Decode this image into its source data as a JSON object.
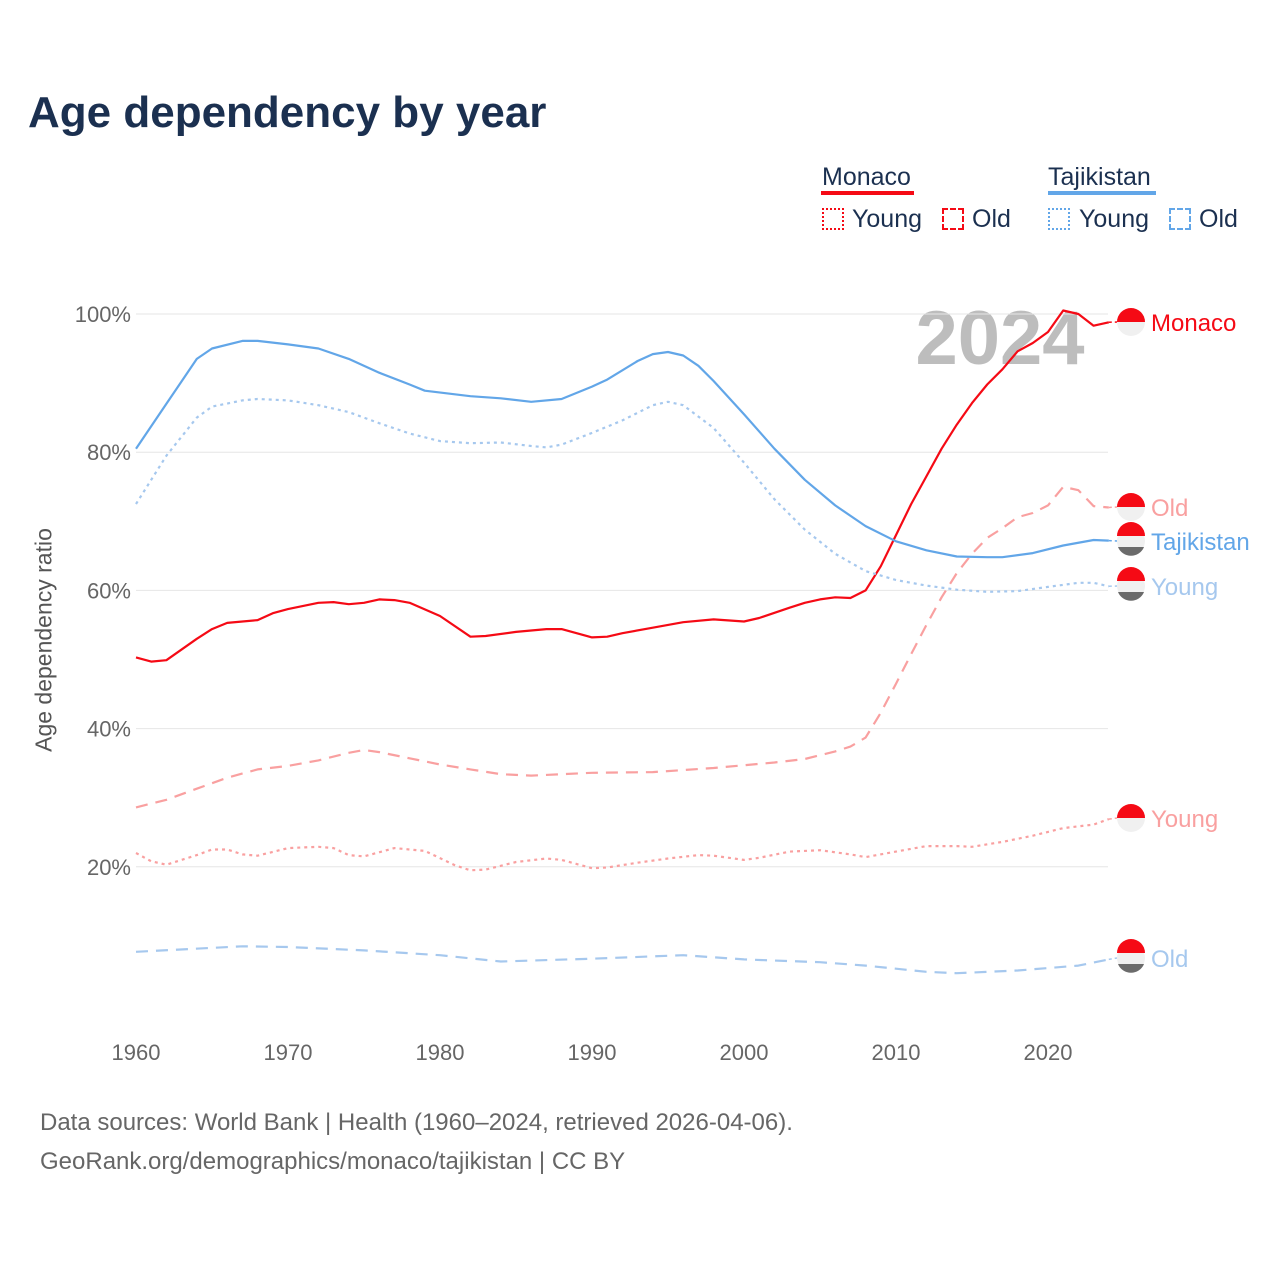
{
  "title": "Age dependency by year",
  "legend": {
    "groups": [
      {
        "name": "Monaco",
        "color": "#f50a15",
        "young": "Young",
        "old": "Old"
      },
      {
        "name": "Tajikistan",
        "color": "#62a6e8",
        "young": "Young",
        "old": "Old"
      }
    ]
  },
  "year_watermark": "2024",
  "footer": {
    "line1": "Data sources: World Bank | Health (1960–2024, retrieved 2026-04-06).",
    "line2": "GeoRank.org/demographics/monaco/tajikistan | CC BY"
  },
  "chart_data": {
    "type": "line",
    "ylabel": "Age dependency ratio",
    "xlim": [
      1960,
      2024
    ],
    "ylim": [
      0,
      100
    ],
    "xticks": [
      "1960",
      "1970",
      "1980",
      "1990",
      "2000",
      "2010",
      "2020"
    ],
    "yticks": [
      "20%",
      "40%",
      "60%",
      "80%",
      "100%"
    ],
    "series": [
      {
        "name": "Monaco",
        "label": "Monaco",
        "country": "Monaco",
        "kind": "total",
        "color": "#f50a15",
        "dash": "",
        "points": [
          [
            1960,
            50.3
          ],
          [
            1961,
            49.7
          ],
          [
            1962,
            49.9
          ],
          [
            1964,
            53
          ],
          [
            1965,
            54.4
          ],
          [
            1966,
            55.3
          ],
          [
            1968,
            55.7
          ],
          [
            1969,
            56.7
          ],
          [
            1970,
            57.3
          ],
          [
            1972,
            58.2
          ],
          [
            1973,
            58.3
          ],
          [
            1974,
            58
          ],
          [
            1975,
            58.2
          ],
          [
            1976,
            58.7
          ],
          [
            1977,
            58.6
          ],
          [
            1978,
            58.2
          ],
          [
            1980,
            56.3
          ],
          [
            1982,
            53.3
          ],
          [
            1983,
            53.4
          ],
          [
            1985,
            54
          ],
          [
            1987,
            54.4
          ],
          [
            1988,
            54.4
          ],
          [
            1990,
            53.2
          ],
          [
            1991,
            53.3
          ],
          [
            1992,
            53.8
          ],
          [
            1994,
            54.6
          ],
          [
            1996,
            55.4
          ],
          [
            1998,
            55.8
          ],
          [
            2000,
            55.5
          ],
          [
            2001,
            56
          ],
          [
            2003,
            57.5
          ],
          [
            2004,
            58.2
          ],
          [
            2005,
            58.7
          ],
          [
            2006,
            59
          ],
          [
            2007,
            58.9
          ],
          [
            2008,
            60
          ],
          [
            2009,
            63.5
          ],
          [
            2010,
            68
          ],
          [
            2011,
            72.5
          ],
          [
            2012,
            76.5
          ],
          [
            2013,
            80.5
          ],
          [
            2014,
            84
          ],
          [
            2015,
            87.1
          ],
          [
            2016,
            89.8
          ],
          [
            2017,
            92
          ],
          [
            2018,
            94.6
          ],
          [
            2019,
            95.8
          ],
          [
            2020,
            97.4
          ],
          [
            2021,
            100.5
          ],
          [
            2022,
            100
          ],
          [
            2023,
            98.3
          ],
          [
            2024,
            98.8
          ]
        ]
      },
      {
        "name": "Monaco Old",
        "label": "Old",
        "country": "Monaco",
        "kind": "old",
        "color": "#f9a0a0",
        "dash": "12 8",
        "points": [
          [
            1960,
            28.6
          ],
          [
            1962,
            29.7
          ],
          [
            1964,
            31.3
          ],
          [
            1966,
            32.9
          ],
          [
            1968,
            34.1
          ],
          [
            1970,
            34.6
          ],
          [
            1972,
            35.4
          ],
          [
            1974,
            36.5
          ],
          [
            1975,
            36.9
          ],
          [
            1976,
            36.6
          ],
          [
            1978,
            35.7
          ],
          [
            1980,
            34.8
          ],
          [
            1982,
            34.1
          ],
          [
            1984,
            33.4
          ],
          [
            1986,
            33.2
          ],
          [
            1988,
            33.4
          ],
          [
            1990,
            33.6
          ],
          [
            1994,
            33.7
          ],
          [
            1998,
            34.3
          ],
          [
            2002,
            35.1
          ],
          [
            2004,
            35.6
          ],
          [
            2006,
            36.7
          ],
          [
            2007,
            37.4
          ],
          [
            2008,
            38.7
          ],
          [
            2009,
            42.3
          ],
          [
            2010,
            46.5
          ],
          [
            2011,
            50.8
          ],
          [
            2012,
            55
          ],
          [
            2013,
            59
          ],
          [
            2014,
            62.5
          ],
          [
            2015,
            65.3
          ],
          [
            2016,
            67.6
          ],
          [
            2017,
            69
          ],
          [
            2018,
            70.6
          ],
          [
            2019,
            71.2
          ],
          [
            2020,
            72.3
          ],
          [
            2021,
            75
          ],
          [
            2022,
            74.5
          ],
          [
            2023,
            72.2
          ],
          [
            2024,
            72
          ]
        ]
      },
      {
        "name": "Tajikistan",
        "label": "Tajikistan",
        "country": "Tajikistan",
        "kind": "total",
        "color": "#62a6e8",
        "dash": "",
        "points": [
          [
            1960,
            80.5
          ],
          [
            1962,
            87
          ],
          [
            1964,
            93.5
          ],
          [
            1965,
            95
          ],
          [
            1967,
            96.1
          ],
          [
            1968,
            96.1
          ],
          [
            1970,
            95.6
          ],
          [
            1972,
            95
          ],
          [
            1974,
            93.5
          ],
          [
            1976,
            91.5
          ],
          [
            1978,
            89.8
          ],
          [
            1979,
            88.9
          ],
          [
            1982,
            88.1
          ],
          [
            1984,
            87.8
          ],
          [
            1986,
            87.3
          ],
          [
            1988,
            87.7
          ],
          [
            1990,
            89.5
          ],
          [
            1991,
            90.5
          ],
          [
            1993,
            93.2
          ],
          [
            1994,
            94.2
          ],
          [
            1995,
            94.5
          ],
          [
            1996,
            94
          ],
          [
            1997,
            92.5
          ],
          [
            1998,
            90.3
          ],
          [
            2000,
            85.5
          ],
          [
            2002,
            80.5
          ],
          [
            2004,
            76
          ],
          [
            2006,
            72.3
          ],
          [
            2008,
            69.3
          ],
          [
            2010,
            67.1
          ],
          [
            2012,
            65.8
          ],
          [
            2014,
            64.9
          ],
          [
            2016,
            64.8
          ],
          [
            2017,
            64.8
          ],
          [
            2019,
            65.4
          ],
          [
            2021,
            66.5
          ],
          [
            2023,
            67.3
          ],
          [
            2024,
            67.2
          ]
        ]
      },
      {
        "name": "Tajikistan Young",
        "label": "Young",
        "country": "Tajikistan",
        "kind": "young",
        "color": "#a6c8ee",
        "dash": "3 4",
        "points": [
          [
            1960,
            72.5
          ],
          [
            1962,
            79.5
          ],
          [
            1964,
            85
          ],
          [
            1965,
            86.6
          ],
          [
            1967,
            87.5
          ],
          [
            1968,
            87.7
          ],
          [
            1970,
            87.5
          ],
          [
            1972,
            86.8
          ],
          [
            1974,
            85.8
          ],
          [
            1976,
            84.2
          ],
          [
            1978,
            82.7
          ],
          [
            1980,
            81.6
          ],
          [
            1982,
            81.3
          ],
          [
            1984,
            81.4
          ],
          [
            1986,
            80.9
          ],
          [
            1987,
            80.7
          ],
          [
            1988,
            81.1
          ],
          [
            1990,
            82.8
          ],
          [
            1992,
            84.6
          ],
          [
            1994,
            86.8
          ],
          [
            1995,
            87.3
          ],
          [
            1996,
            86.8
          ],
          [
            1998,
            83.5
          ],
          [
            2000,
            78.5
          ],
          [
            2002,
            73.2
          ],
          [
            2004,
            68.8
          ],
          [
            2006,
            65.3
          ],
          [
            2008,
            62.8
          ],
          [
            2010,
            61.5
          ],
          [
            2012,
            60.7
          ],
          [
            2014,
            60.1
          ],
          [
            2016,
            59.8
          ],
          [
            2018,
            59.9
          ],
          [
            2020,
            60.5
          ],
          [
            2022,
            61.1
          ],
          [
            2023,
            61.1
          ],
          [
            2024,
            60.6
          ]
        ]
      },
      {
        "name": "Monaco Young",
        "label": "Young",
        "country": "Monaco",
        "kind": "young",
        "color": "#f9a0a0",
        "dash": "3 4",
        "points": [
          [
            1960,
            22
          ],
          [
            1961,
            20.8
          ],
          [
            1962,
            20.3
          ],
          [
            1964,
            21.7
          ],
          [
            1965,
            22.5
          ],
          [
            1966,
            22.5
          ],
          [
            1967,
            21.8
          ],
          [
            1968,
            21.6
          ],
          [
            1970,
            22.7
          ],
          [
            1972,
            22.9
          ],
          [
            1973,
            22.7
          ],
          [
            1974,
            21.7
          ],
          [
            1975,
            21.5
          ],
          [
            1977,
            22.7
          ],
          [
            1979,
            22.3
          ],
          [
            1981,
            20.2
          ],
          [
            1982,
            19.5
          ],
          [
            1983,
            19.6
          ],
          [
            1985,
            20.7
          ],
          [
            1987,
            21.2
          ],
          [
            1988,
            21
          ],
          [
            1990,
            19.8
          ],
          [
            1991,
            19.9
          ],
          [
            1993,
            20.6
          ],
          [
            1995,
            21.2
          ],
          [
            1997,
            21.7
          ],
          [
            1998,
            21.6
          ],
          [
            2000,
            21
          ],
          [
            2001,
            21.3
          ],
          [
            2003,
            22.2
          ],
          [
            2005,
            22.4
          ],
          [
            2007,
            21.8
          ],
          [
            2008,
            21.4
          ],
          [
            2010,
            22.2
          ],
          [
            2012,
            23
          ],
          [
            2014,
            23
          ],
          [
            2015,
            22.9
          ],
          [
            2017,
            23.6
          ],
          [
            2019,
            24.5
          ],
          [
            2021,
            25.6
          ],
          [
            2023,
            26.1
          ],
          [
            2024,
            26.9
          ]
        ]
      },
      {
        "name": "Tajikistan Old",
        "label": "Old",
        "country": "Tajikistan",
        "kind": "old",
        "color": "#a6c8ee",
        "dash": "12 8",
        "points": [
          [
            1960,
            7.7
          ],
          [
            1967,
            8.5
          ],
          [
            1970,
            8.4
          ],
          [
            1975,
            7.9
          ],
          [
            1980,
            7.2
          ],
          [
            1984,
            6.3
          ],
          [
            1990,
            6.7
          ],
          [
            1996,
            7.2
          ],
          [
            2000,
            6.6
          ],
          [
            2005,
            6.2
          ],
          [
            2008,
            5.7
          ],
          [
            2012,
            4.8
          ],
          [
            2014,
            4.6
          ],
          [
            2018,
            5
          ],
          [
            2022,
            5.7
          ],
          [
            2024,
            6.6
          ]
        ]
      }
    ]
  }
}
